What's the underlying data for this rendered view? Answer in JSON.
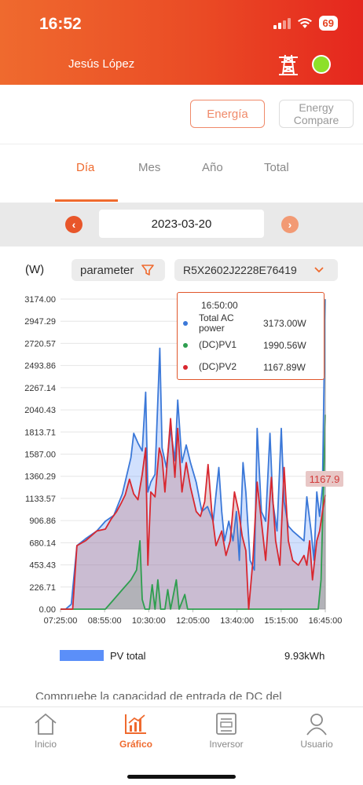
{
  "status_bar": {
    "time": "16:52",
    "battery": "69"
  },
  "header": {
    "user_name": "Jesús López"
  },
  "top_buttons": {
    "energia": "Energía",
    "energy_compare": "Energy Compare"
  },
  "tabs": [
    {
      "label": "Día",
      "active": true
    },
    {
      "label": "Mes",
      "active": false
    },
    {
      "label": "Año",
      "active": false
    },
    {
      "label": "Total",
      "active": false
    }
  ],
  "date_bar": {
    "date": "2023-03-20",
    "prev_icon": "chevron-left-icon",
    "next_icon": "chevron-right-icon"
  },
  "controls": {
    "unit": "(W)",
    "parameter_label": "parameter",
    "device": "R5X2602J2228E76419"
  },
  "tooltip": {
    "time": "16:50:00",
    "rows": [
      {
        "name": "Total AC power",
        "value": "3173.00W",
        "color": "#3b78d8"
      },
      {
        "name": "(DC)PV1",
        "value": "1990.56W",
        "color": "#2e9e4f"
      },
      {
        "name": "(DC)PV2",
        "value": "1167.89W",
        "color": "#d8272f"
      }
    ]
  },
  "peak_label": "1167.9",
  "legend": {
    "label": "PV total",
    "value": "9.93kWh",
    "color": "#5b8ff9"
  },
  "cut_text": "Compruebe la capacidad de entrada de DC del",
  "bottom_nav": [
    {
      "label": "Inicio",
      "icon": "home-icon",
      "active": false
    },
    {
      "label": "Gráfico",
      "icon": "chart-icon",
      "active": true
    },
    {
      "label": "Inversor",
      "icon": "inverter-icon",
      "active": false
    },
    {
      "label": "Usuario",
      "icon": "user-icon",
      "active": false
    }
  ],
  "colors": {
    "accent": "#ef6a2e",
    "header_end": "#e5261e",
    "status_ok": "#8de02a"
  },
  "chart_data": {
    "type": "area",
    "ylabel": "(W)",
    "y_ticks": [
      "3174.00",
      "2947.29",
      "2720.57",
      "2493.86",
      "2267.14",
      "2040.43",
      "1813.71",
      "1587.00",
      "1360.29",
      "1133.57",
      "906.86",
      "680.14",
      "453.43",
      "226.71",
      "0.00"
    ],
    "x_ticks": [
      "07:25:00",
      "08:55:00",
      "10:30:00",
      "12:05:00",
      "13:40:00",
      "15:15:00",
      "16:45:00"
    ],
    "ylim": [
      0,
      3174
    ],
    "x_hours": [
      7.42,
      16.75
    ],
    "series": [
      {
        "name": "Total AC power",
        "color": "#3b78d8",
        "points": [
          [
            7.42,
            0
          ],
          [
            7.6,
            0
          ],
          [
            7.8,
            50
          ],
          [
            8.0,
            650
          ],
          [
            8.3,
            720
          ],
          [
            8.7,
            800
          ],
          [
            9.0,
            900
          ],
          [
            9.3,
            960
          ],
          [
            9.6,
            1180
          ],
          [
            9.9,
            1550
          ],
          [
            10.0,
            1800
          ],
          [
            10.15,
            1700
          ],
          [
            10.3,
            1620
          ],
          [
            10.42,
            2220
          ],
          [
            10.5,
            1200
          ],
          [
            10.6,
            1300
          ],
          [
            10.75,
            1380
          ],
          [
            10.92,
            2670
          ],
          [
            11.0,
            1650
          ],
          [
            11.15,
            1450
          ],
          [
            11.3,
            1850
          ],
          [
            11.45,
            1520
          ],
          [
            11.55,
            2140
          ],
          [
            11.7,
            1500
          ],
          [
            11.85,
            1680
          ],
          [
            12.0,
            1500
          ],
          [
            12.2,
            1300
          ],
          [
            12.4,
            1000
          ],
          [
            12.6,
            1050
          ],
          [
            12.8,
            900
          ],
          [
            13.0,
            1450
          ],
          [
            13.1,
            1000
          ],
          [
            13.2,
            700
          ],
          [
            13.35,
            900
          ],
          [
            13.5,
            700
          ],
          [
            13.62,
            1000
          ],
          [
            13.72,
            500
          ],
          [
            13.85,
            1500
          ],
          [
            13.95,
            1200
          ],
          [
            14.1,
            500
          ],
          [
            14.25,
            400
          ],
          [
            14.35,
            1850
          ],
          [
            14.5,
            1000
          ],
          [
            14.65,
            900
          ],
          [
            14.8,
            1800
          ],
          [
            14.9,
            1100
          ],
          [
            15.05,
            800
          ],
          [
            15.2,
            1850
          ],
          [
            15.3,
            1100
          ],
          [
            15.45,
            850
          ],
          [
            15.6,
            800
          ],
          [
            15.8,
            750
          ],
          [
            16.0,
            700
          ],
          [
            16.1,
            1150
          ],
          [
            16.25,
            800
          ],
          [
            16.35,
            500
          ],
          [
            16.45,
            1200
          ],
          [
            16.55,
            950
          ],
          [
            16.65,
            1250
          ],
          [
            16.75,
            3173
          ]
        ]
      },
      {
        "name": "(DC)PV1",
        "color": "#2e9e4f",
        "points": [
          [
            7.42,
            0
          ],
          [
            9.0,
            0
          ],
          [
            9.3,
            100
          ],
          [
            9.6,
            200
          ],
          [
            9.9,
            300
          ],
          [
            10.1,
            400
          ],
          [
            10.22,
            700
          ],
          [
            10.3,
            100
          ],
          [
            10.4,
            0
          ],
          [
            10.55,
            0
          ],
          [
            10.65,
            250
          ],
          [
            10.75,
            0
          ],
          [
            10.85,
            300
          ],
          [
            10.95,
            0
          ],
          [
            11.1,
            0
          ],
          [
            11.2,
            200
          ],
          [
            11.3,
            0
          ],
          [
            11.5,
            300
          ],
          [
            11.6,
            0
          ],
          [
            11.8,
            150
          ],
          [
            11.9,
            0
          ],
          [
            16.5,
            0
          ],
          [
            16.6,
            300
          ],
          [
            16.68,
            1200
          ],
          [
            16.75,
            1990
          ]
        ]
      },
      {
        "name": "(DC)PV2",
        "color": "#d8272f",
        "points": [
          [
            7.42,
            0
          ],
          [
            7.85,
            0
          ],
          [
            8.0,
            650
          ],
          [
            8.3,
            700
          ],
          [
            8.7,
            800
          ],
          [
            9.0,
            820
          ],
          [
            9.2,
            920
          ],
          [
            9.4,
            1000
          ],
          [
            9.55,
            1080
          ],
          [
            9.7,
            1170
          ],
          [
            9.85,
            1330
          ],
          [
            10.0,
            1180
          ],
          [
            10.15,
            1120
          ],
          [
            10.3,
            1380
          ],
          [
            10.42,
            1650
          ],
          [
            10.5,
            450
          ],
          [
            10.6,
            1200
          ],
          [
            10.75,
            1150
          ],
          [
            10.9,
            1650
          ],
          [
            11.0,
            1550
          ],
          [
            11.1,
            1200
          ],
          [
            11.3,
            1950
          ],
          [
            11.45,
            1350
          ],
          [
            11.55,
            1850
          ],
          [
            11.7,
            1200
          ],
          [
            11.85,
            1500
          ],
          [
            12.0,
            1250
          ],
          [
            12.2,
            1000
          ],
          [
            12.35,
            950
          ],
          [
            12.5,
            1100
          ],
          [
            12.62,
            1480
          ],
          [
            12.75,
            1000
          ],
          [
            12.9,
            650
          ],
          [
            13.1,
            800
          ],
          [
            13.25,
            550
          ],
          [
            13.4,
            700
          ],
          [
            13.55,
            1200
          ],
          [
            13.7,
            1000
          ],
          [
            13.82,
            750
          ],
          [
            13.95,
            600
          ],
          [
            14.05,
            0
          ],
          [
            14.2,
            500
          ],
          [
            14.35,
            1300
          ],
          [
            14.5,
            900
          ],
          [
            14.65,
            500
          ],
          [
            14.85,
            1350
          ],
          [
            15.0,
            700
          ],
          [
            15.15,
            450
          ],
          [
            15.3,
            1450
          ],
          [
            15.45,
            700
          ],
          [
            15.6,
            500
          ],
          [
            15.8,
            450
          ],
          [
            16.0,
            550
          ],
          [
            16.1,
            450
          ],
          [
            16.2,
            700
          ],
          [
            16.3,
            300
          ],
          [
            16.45,
            700
          ],
          [
            16.55,
            800
          ],
          [
            16.65,
            1000
          ],
          [
            16.75,
            1168
          ]
        ]
      }
    ]
  }
}
